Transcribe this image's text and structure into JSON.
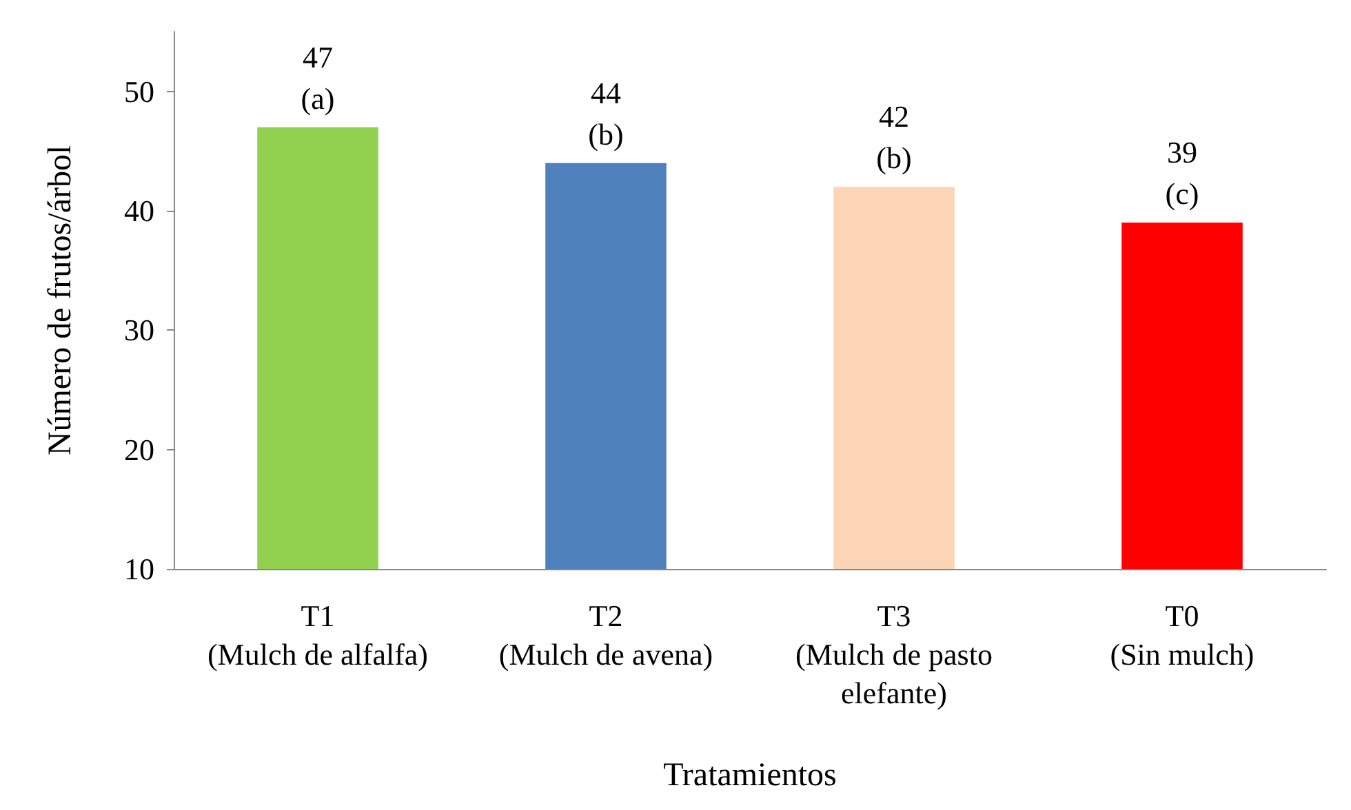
{
  "chart_data": {
    "type": "bar",
    "xlabel": "Tratamientos",
    "ylabel": "Número de frutos/árbol",
    "categories": [
      "T1\n(Mulch de alfalfa)",
      "T2\n(Mulch de avena)",
      "T3\n(Mulch de pasto\nelefante)",
      "T0\n(Sin mulch)"
    ],
    "values": [
      47,
      44,
      42,
      39
    ],
    "colors": [
      "#92d050",
      "#4f81bd",
      "#fbd5b5",
      "#ff0000"
    ],
    "value_labels": [
      "47\n(a)",
      "44\n(b)",
      "42\n(b)",
      "39\n(c)"
    ],
    "ylim": [
      10,
      55
    ],
    "yticks": [
      10,
      20,
      30,
      40,
      50
    ],
    "grid": false
  }
}
